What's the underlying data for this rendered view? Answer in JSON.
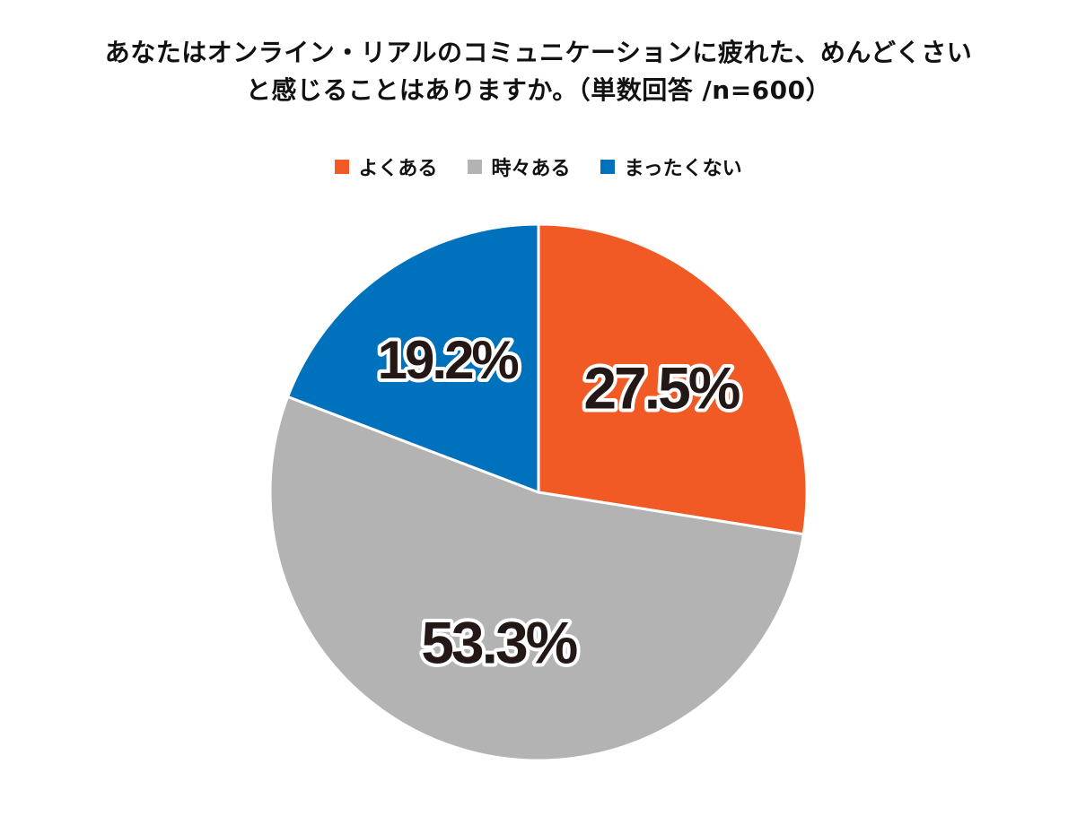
{
  "chart_data": {
    "type": "pie",
    "title_lines": [
      "あなたはオンライン・リアルのコミュニケーションに疲れた、めんどくさい",
      "と感じることはありますか。（単数回答 /n=600）"
    ],
    "slices": [
      {
        "name": "よくある",
        "value": 27.5,
        "label": "27.5%",
        "color": "#F15A24"
      },
      {
        "name": "時々ある",
        "value": 53.3,
        "label": "53.3%",
        "color": "#B3B3B3"
      },
      {
        "name": "まったくない",
        "value": 19.2,
        "label": "19.2%",
        "color": "#0071BC"
      }
    ],
    "start_angle_deg": 0,
    "direction": "clockwise",
    "legend_position": "top"
  }
}
